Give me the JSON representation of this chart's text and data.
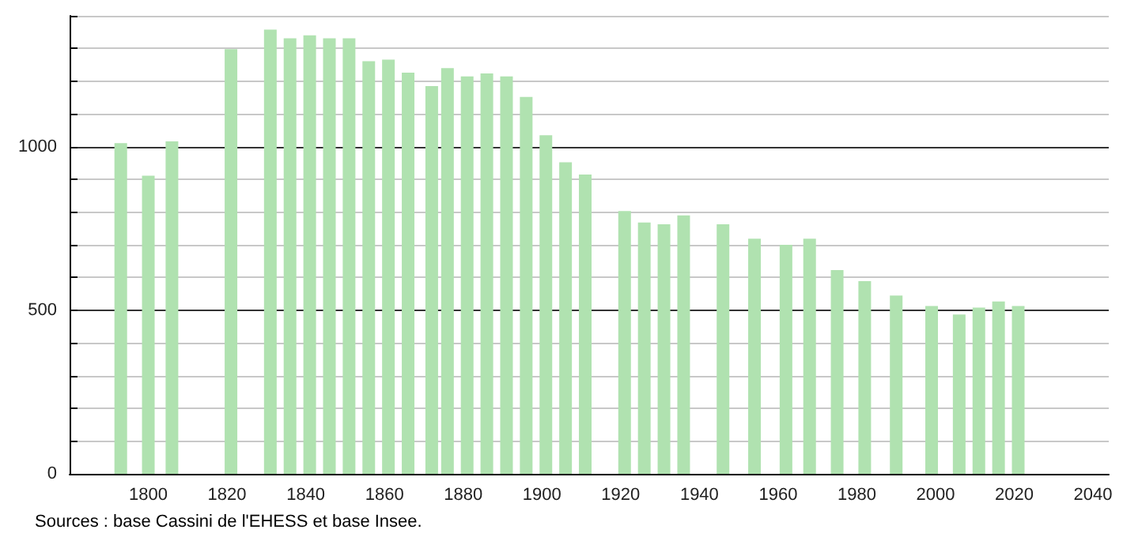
{
  "chart_data": {
    "type": "bar",
    "color": "#b0e2b0",
    "x": [
      1793,
      1800,
      1806,
      1821,
      1831,
      1836,
      1841,
      1846,
      1851,
      1856,
      1861,
      1866,
      1872,
      1876,
      1881,
      1886,
      1891,
      1896,
      1901,
      1906,
      1911,
      1921,
      1926,
      1931,
      1936,
      1946,
      1954,
      1962,
      1968,
      1975,
      1982,
      1990,
      1999,
      2006,
      2011,
      2016,
      2021
    ],
    "values": [
      1011,
      911,
      1016,
      1298,
      1358,
      1331,
      1340,
      1331,
      1331,
      1261,
      1266,
      1226,
      1185,
      1240,
      1215,
      1224,
      1215,
      1152,
      1035,
      952,
      915,
      803,
      768,
      763,
      790,
      763,
      719,
      700,
      719,
      623,
      589,
      545,
      513,
      487,
      508,
      527,
      513
    ],
    "xlim": [
      1780,
      2044
    ],
    "xticks": [
      1800,
      1820,
      1840,
      1860,
      1880,
      1900,
      1920,
      1940,
      1960,
      1980,
      2000,
      2020,
      2040
    ],
    "ylim": [
      0,
      1400
    ],
    "yticks": [
      0,
      {
        "value": 100,
        "label": null
      },
      {
        "value": 200,
        "label": null
      },
      {
        "value": 300,
        "label": null
      },
      {
        "value": 400,
        "label": null
      },
      500,
      {
        "value": 600,
        "label": null
      },
      {
        "value": 700,
        "label": null
      },
      {
        "value": 800,
        "label": null
      },
      {
        "value": 900,
        "label": null
      },
      1000,
      {
        "value": 1100,
        "label": null
      },
      {
        "value": 1200,
        "label": null
      },
      {
        "value": 1300,
        "label": null
      },
      {
        "value": 1400,
        "label": null
      }
    ],
    "grid": "y",
    "annotations": [
      "Sources : base Cassini de l'EHESS et base Insee."
    ]
  }
}
